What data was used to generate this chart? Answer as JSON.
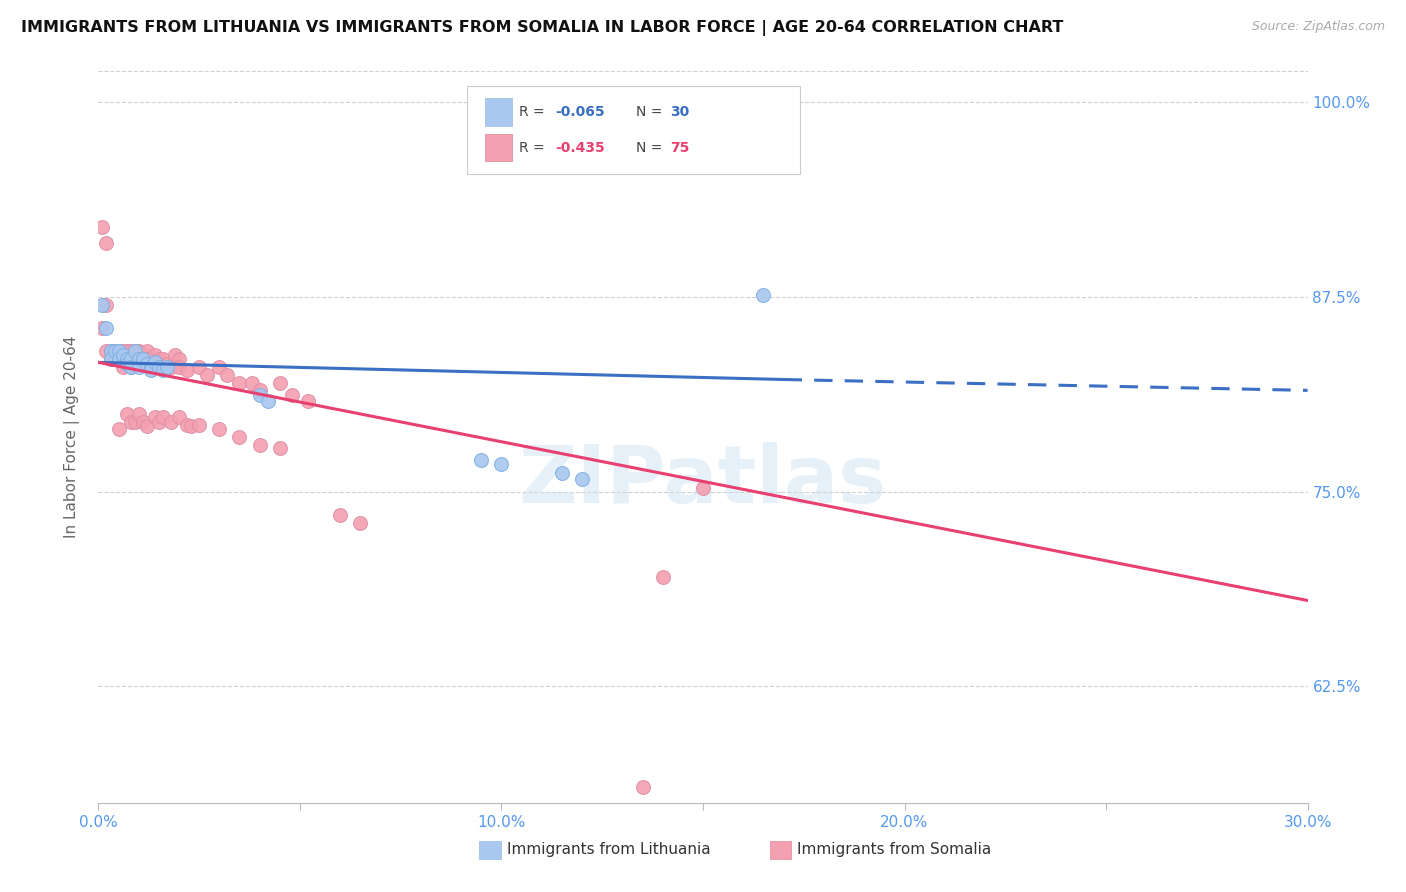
{
  "title": "IMMIGRANTS FROM LITHUANIA VS IMMIGRANTS FROM SOMALIA IN LABOR FORCE | AGE 20-64 CORRELATION CHART",
  "source": "Source: ZipAtlas.com",
  "ylabel": "In Labor Force | Age 20-64",
  "xlim": [
    0.0,
    0.3
  ],
  "ylim": [
    0.55,
    1.02
  ],
  "yticks": [
    0.625,
    0.75,
    0.875,
    1.0
  ],
  "ytick_labels": [
    "62.5%",
    "75.0%",
    "87.5%",
    "100.0%"
  ],
  "xticks": [
    0.0,
    0.05,
    0.1,
    0.15,
    0.2,
    0.25,
    0.3
  ],
  "xtick_labels": [
    "0.0%",
    "",
    "10.0%",
    "",
    "20.0%",
    "",
    "30.0%"
  ],
  "xtick_labels_show": [
    "0.0%",
    "10.0%",
    "20.0%",
    "30.0%"
  ],
  "lithuania_color": "#a8c8f0",
  "somalia_color": "#f4a0b0",
  "trend_lithuania_color": "#3a6fc4",
  "trend_somalia_color": "#e84070",
  "lithuania_R": "-0.065",
  "lithuania_N": "30",
  "somalia_R": "-0.435",
  "somalia_N": "75",
  "watermark": "ZIPatlas",
  "background_color": "#ffffff",
  "axis_color": "#5599ee",
  "legend_label_lithuania": "Immigrants from Lithuania",
  "legend_label_somalia": "Immigrants from Somalia",
  "lit_trend_x0": 0.0,
  "lit_trend_y0": 0.833,
  "lit_trend_x1": 0.17,
  "lit_trend_y1": 0.822,
  "lit_trend_dash_x1": 0.3,
  "lit_trend_dash_y1": 0.815,
  "som_trend_x0": 0.0,
  "som_trend_y0": 0.833,
  "som_trend_x1": 0.3,
  "som_trend_y1": 0.68,
  "lithuania_pts": [
    [
      0.001,
      0.87
    ],
    [
      0.002,
      0.855
    ],
    [
      0.003,
      0.84
    ],
    [
      0.003,
      0.835
    ],
    [
      0.004,
      0.84
    ],
    [
      0.005,
      0.84
    ],
    [
      0.005,
      0.835
    ],
    [
      0.006,
      0.838
    ],
    [
      0.007,
      0.835
    ],
    [
      0.007,
      0.832
    ],
    [
      0.008,
      0.835
    ],
    [
      0.008,
      0.83
    ],
    [
      0.009,
      0.84
    ],
    [
      0.01,
      0.835
    ],
    [
      0.01,
      0.83
    ],
    [
      0.011,
      0.835
    ],
    [
      0.012,
      0.832
    ],
    [
      0.013,
      0.83
    ],
    [
      0.013,
      0.828
    ],
    [
      0.014,
      0.833
    ],
    [
      0.015,
      0.83
    ],
    [
      0.016,
      0.828
    ],
    [
      0.017,
      0.83
    ],
    [
      0.04,
      0.812
    ],
    [
      0.042,
      0.808
    ],
    [
      0.165,
      0.876
    ],
    [
      0.095,
      0.77
    ],
    [
      0.1,
      0.768
    ],
    [
      0.115,
      0.762
    ],
    [
      0.12,
      0.758
    ]
  ],
  "somalia_pts": [
    [
      0.001,
      0.855
    ],
    [
      0.002,
      0.91
    ],
    [
      0.002,
      0.84
    ],
    [
      0.003,
      0.84
    ],
    [
      0.003,
      0.835
    ],
    [
      0.004,
      0.84
    ],
    [
      0.004,
      0.835
    ],
    [
      0.005,
      0.84
    ],
    [
      0.005,
      0.838
    ],
    [
      0.006,
      0.84
    ],
    [
      0.006,
      0.835
    ],
    [
      0.006,
      0.83
    ],
    [
      0.007,
      0.84
    ],
    [
      0.007,
      0.838
    ],
    [
      0.007,
      0.835
    ],
    [
      0.008,
      0.84
    ],
    [
      0.008,
      0.835
    ],
    [
      0.008,
      0.83
    ],
    [
      0.009,
      0.84
    ],
    [
      0.009,
      0.835
    ],
    [
      0.01,
      0.84
    ],
    [
      0.01,
      0.838
    ],
    [
      0.01,
      0.835
    ],
    [
      0.011,
      0.838
    ],
    [
      0.011,
      0.835
    ],
    [
      0.012,
      0.84
    ],
    [
      0.012,
      0.835
    ],
    [
      0.013,
      0.835
    ],
    [
      0.013,
      0.832
    ],
    [
      0.014,
      0.838
    ],
    [
      0.015,
      0.835
    ],
    [
      0.015,
      0.83
    ],
    [
      0.016,
      0.835
    ],
    [
      0.017,
      0.832
    ],
    [
      0.018,
      0.83
    ],
    [
      0.019,
      0.838
    ],
    [
      0.02,
      0.835
    ],
    [
      0.02,
      0.83
    ],
    [
      0.022,
      0.828
    ],
    [
      0.025,
      0.83
    ],
    [
      0.027,
      0.825
    ],
    [
      0.03,
      0.83
    ],
    [
      0.032,
      0.825
    ],
    [
      0.035,
      0.82
    ],
    [
      0.038,
      0.82
    ],
    [
      0.04,
      0.815
    ],
    [
      0.045,
      0.82
    ],
    [
      0.048,
      0.812
    ],
    [
      0.052,
      0.808
    ],
    [
      0.001,
      0.92
    ],
    [
      0.002,
      0.87
    ],
    [
      0.005,
      0.79
    ],
    [
      0.007,
      0.8
    ],
    [
      0.008,
      0.795
    ],
    [
      0.009,
      0.795
    ],
    [
      0.01,
      0.8
    ],
    [
      0.011,
      0.795
    ],
    [
      0.012,
      0.792
    ],
    [
      0.014,
      0.798
    ],
    [
      0.015,
      0.795
    ],
    [
      0.016,
      0.798
    ],
    [
      0.018,
      0.795
    ],
    [
      0.02,
      0.798
    ],
    [
      0.022,
      0.793
    ],
    [
      0.023,
      0.792
    ],
    [
      0.025,
      0.793
    ],
    [
      0.03,
      0.79
    ],
    [
      0.035,
      0.785
    ],
    [
      0.04,
      0.78
    ],
    [
      0.045,
      0.778
    ],
    [
      0.06,
      0.735
    ],
    [
      0.065,
      0.73
    ],
    [
      0.15,
      0.752
    ],
    [
      0.14,
      0.695
    ],
    [
      0.135,
      0.56
    ]
  ]
}
